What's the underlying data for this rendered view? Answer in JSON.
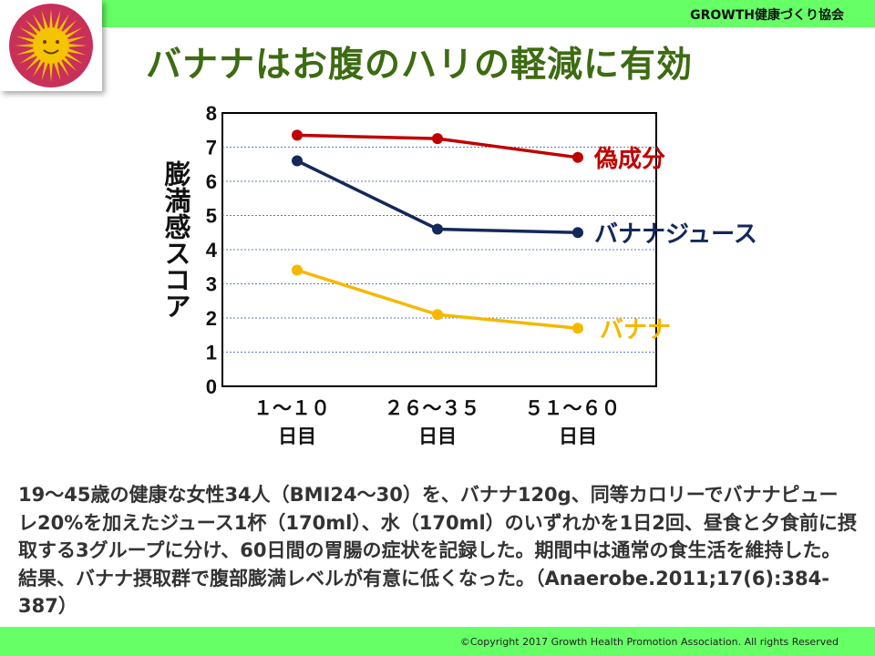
{
  "header": {
    "organization": "GROWTH健康づくり協会",
    "title": "バナナはお腹のハリの軽減に有効"
  },
  "chart_data": {
    "type": "line",
    "ylabel": "膨満感スコア",
    "ylim": [
      0,
      8
    ],
    "y_ticks": [
      "0",
      "1",
      "2",
      "3",
      "4",
      "5",
      "6",
      "7",
      "8"
    ],
    "grid": true,
    "categories": [
      {
        "line1": "１～１０",
        "line2": "日目"
      },
      {
        "line1": "２６～３５",
        "line2": "日目"
      },
      {
        "line1": "５１～６０",
        "line2": "日目"
      }
    ],
    "series": [
      {
        "name": "偽成分",
        "color": "#c00000",
        "values": [
          7.35,
          7.25,
          6.7
        ]
      },
      {
        "name": "バナナジュース",
        "color": "#14285a",
        "values": [
          6.6,
          4.6,
          4.5
        ]
      },
      {
        "name": "バナナ",
        "color": "#f5b800",
        "values": [
          3.4,
          2.1,
          1.7
        ]
      }
    ]
  },
  "description": "19～45歳の健康な女性34人（BMI24～30）を、バナナ120g、同等カロリーでバナナピューレ20%を加えたジュース1杯（170ml）、水（170ml）のいずれかを1日2回、昼食と夕食前に摂取する3グループに分け、60日間の胃腸の症状を記録した。期間中は通常の食生活を維持した。結果、バナナ摂取群で腹部膨満レベルが有意に低くなった。（Anaerobe.2011;17(6):384-387）",
  "footer": {
    "copyright": "©Copyright 2017 Growth Health Promotion Association. All rights Reserved"
  }
}
